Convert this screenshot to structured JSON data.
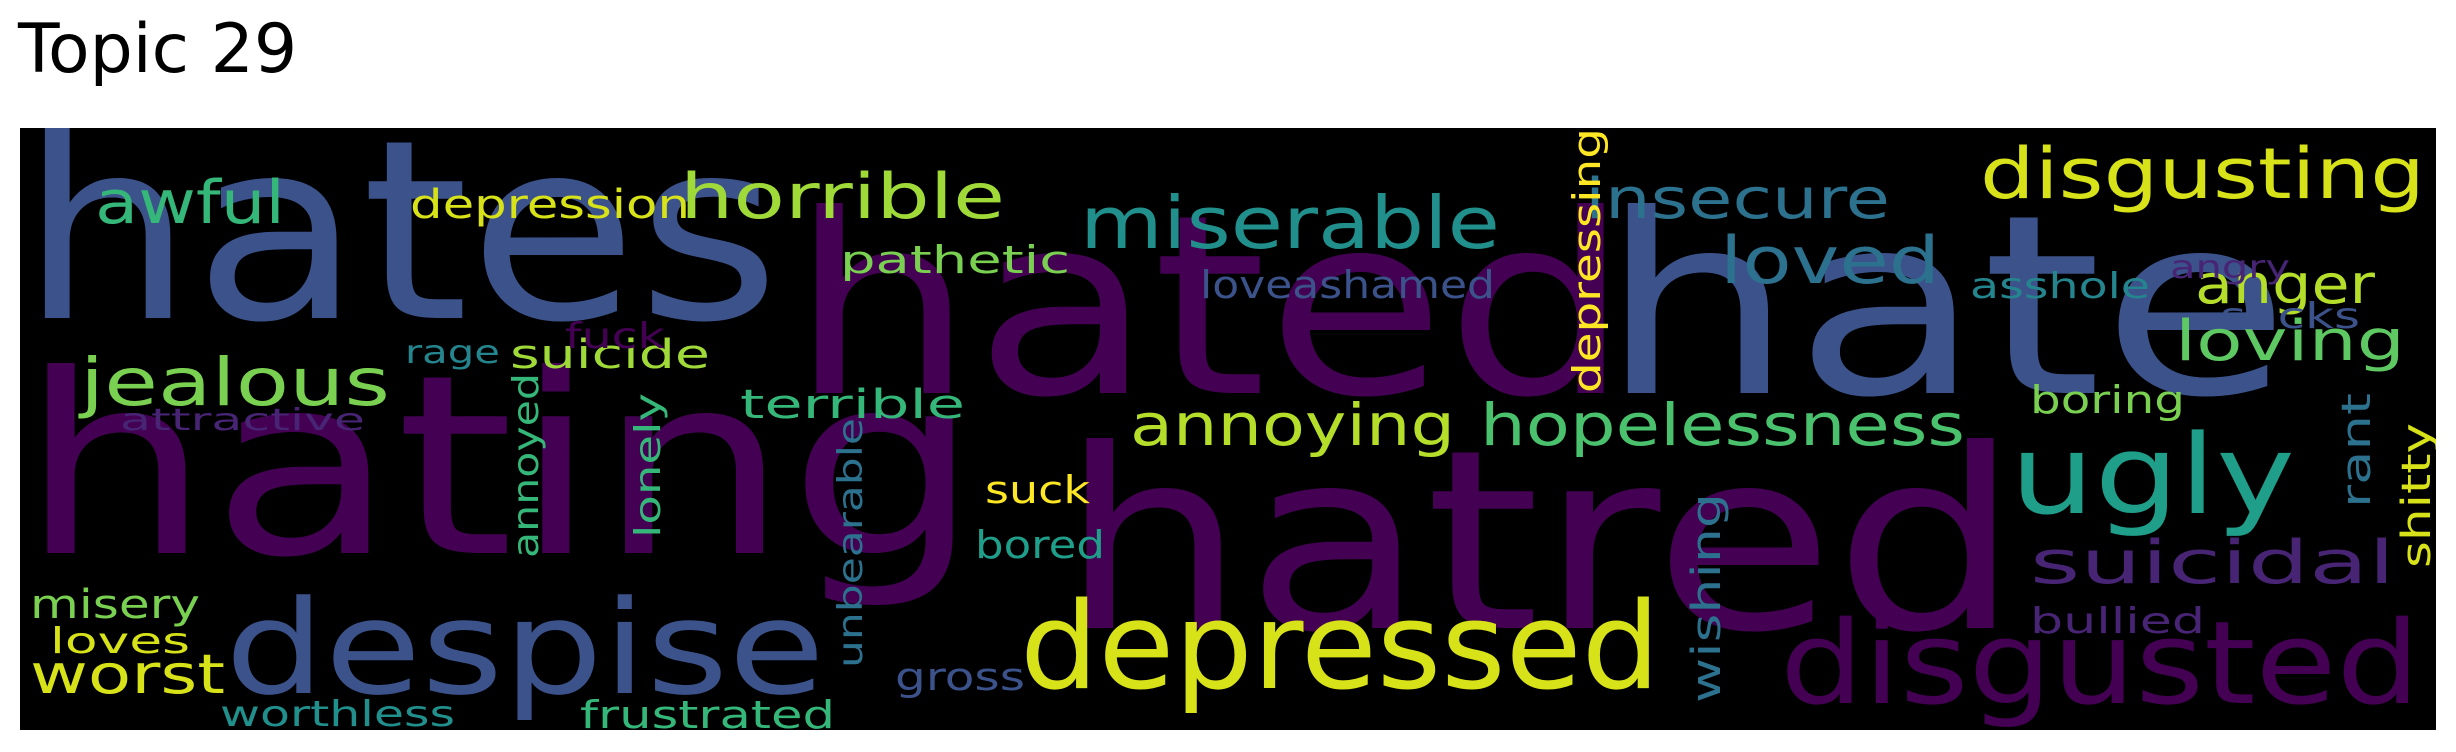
{
  "title": "Topic 29",
  "background_color": "#000000",
  "words": [
    {
      "text": "hates",
      "color": "#3b528b"
    },
    {
      "text": "hated",
      "color": "#440154"
    },
    {
      "text": "hate",
      "color": "#3b528b"
    },
    {
      "text": "hating",
      "color": "#440154"
    },
    {
      "text": "hatred",
      "color": "#440154"
    },
    {
      "text": "despise",
      "color": "#3b528b"
    },
    {
      "text": "depressed",
      "color": "#d8e219"
    },
    {
      "text": "disgusted",
      "color": "#440154"
    },
    {
      "text": "ugly",
      "color": "#1f9e89"
    },
    {
      "text": "miserable",
      "color": "#21908d"
    },
    {
      "text": "disgusting",
      "color": "#d8e219"
    },
    {
      "text": "horrible",
      "color": "#a0da39"
    },
    {
      "text": "insecure",
      "color": "#2c728e"
    },
    {
      "text": "hopelessness",
      "color": "#4ac16d"
    },
    {
      "text": "annoying",
      "color": "#b5de2b"
    },
    {
      "text": "jealous",
      "color": "#7ad151"
    },
    {
      "text": "awful",
      "color": "#35b779"
    },
    {
      "text": "loved",
      "color": "#2c728e"
    },
    {
      "text": "suicidal",
      "color": "#482475"
    },
    {
      "text": "anger",
      "color": "#b5de2b"
    },
    {
      "text": "loving",
      "color": "#5ec962"
    },
    {
      "text": "worst",
      "color": "#d8e219"
    },
    {
      "text": "depression",
      "color": "#d8e219"
    },
    {
      "text": "pathetic",
      "color": "#7ad151"
    },
    {
      "text": "depressing",
      "color": "#fde725"
    },
    {
      "text": "suicide",
      "color": "#a0da39"
    },
    {
      "text": "terrible",
      "color": "#35b779"
    },
    {
      "text": "misery",
      "color": "#7ad151"
    },
    {
      "text": "loveashamed",
      "color": "#3b528b"
    },
    {
      "text": "asshole",
      "color": "#25858e"
    },
    {
      "text": "sucks",
      "color": "#3b528b"
    },
    {
      "text": "angry",
      "color": "#482475"
    },
    {
      "text": "wishing",
      "color": "#2c728e"
    },
    {
      "text": "fuck",
      "color": "#440154"
    },
    {
      "text": "rage",
      "color": "#25858e"
    },
    {
      "text": "attractive",
      "color": "#482475"
    },
    {
      "text": "annoyed",
      "color": "#35b779"
    },
    {
      "text": "lonely",
      "color": "#35b779"
    },
    {
      "text": "unbearable",
      "color": "#2c728e"
    },
    {
      "text": "suck",
      "color": "#fde725"
    },
    {
      "text": "bored",
      "color": "#1f9e89"
    },
    {
      "text": "gross",
      "color": "#3b528b"
    },
    {
      "text": "frustrated",
      "color": "#35b779"
    },
    {
      "text": "worthless",
      "color": "#21908d"
    },
    {
      "text": "loves",
      "color": "#d8e219"
    },
    {
      "text": "boring",
      "color": "#7ad151"
    },
    {
      "text": "rant",
      "color": "#2c728e"
    },
    {
      "text": "shitty",
      "color": "#d8e219"
    },
    {
      "text": "bullied",
      "color": "#482475"
    }
  ]
}
